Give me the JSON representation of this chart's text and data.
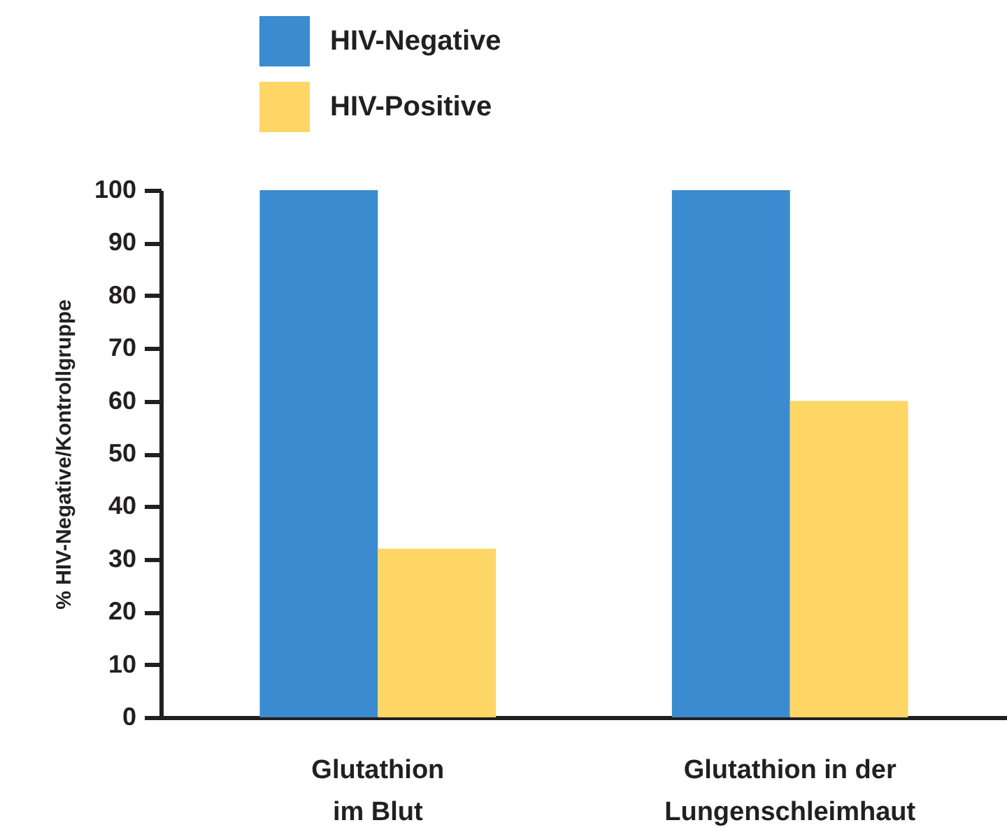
{
  "chart_data": {
    "type": "bar",
    "ylabel": "% HIV-Negative/Kontrollgruppe",
    "categories": [
      "Glutathion\nim Blut",
      "Glutathion in der\nLungenschleimhaut"
    ],
    "series": [
      {
        "name": "HIV-Negative",
        "color": "#3a8bcf",
        "values": [
          100,
          100
        ]
      },
      {
        "name": "HIV-Positive",
        "color": "#fdd665",
        "values": [
          32,
          60
        ]
      }
    ],
    "ylim": [
      0,
      100
    ],
    "yticks": [
      0,
      10,
      20,
      30,
      40,
      50,
      60,
      70,
      80,
      90,
      100
    ],
    "grid": false,
    "legend": "top left"
  }
}
